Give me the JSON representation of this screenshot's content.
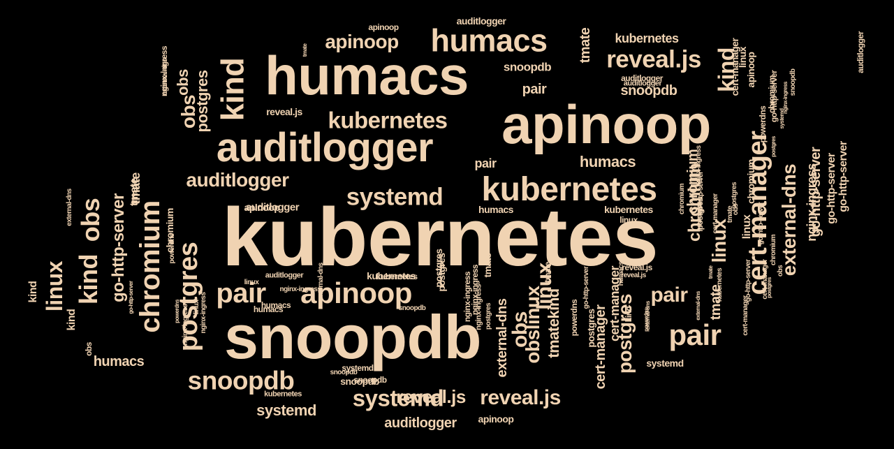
{
  "colors": {
    "background": "#000000",
    "text": "#f0d3b2"
  },
  "words": [
    "kubernetes",
    "snoopdb",
    "apinoop",
    "humacs",
    "auditlogger",
    "kubernetes",
    "humacs",
    "apinoop",
    "kubernetes",
    "systemd",
    "reveal.js",
    "snoopdb",
    "auditlogger",
    "kind",
    "cert-manager",
    "external-dns",
    "pair",
    "pair",
    "pair",
    "apinoop",
    "postgres",
    "chromium",
    "obs",
    "kind",
    "linux",
    "obs",
    "kind",
    "linux",
    "auditlogger",
    "obs",
    "postgres",
    "kind",
    "linux",
    "chromium",
    "reveal.js",
    "humacs",
    "snoopdb",
    "nginx-ingress",
    "go-http-server",
    "systemd",
    "obslinux",
    "postgres",
    "tmate",
    "cert-manager",
    "kubernetes",
    "snoopdb",
    "systemd",
    "reveal.js",
    "pair",
    "humacs",
    "apinoop",
    "kubernetes",
    "auditlogger",
    "reveal.js",
    "pair",
    "snoopdb",
    "snoopdb",
    "kubernetes",
    "obs",
    "go-http-server",
    "tmate",
    "external-dns",
    "tmate",
    "humacs",
    "chromium",
    "tmate",
    "tmatekind",
    "cert-manager",
    "linux",
    "nginx-ingress",
    "chromium",
    "chromium",
    "chromium",
    "obs",
    "postgres",
    "tmate",
    "humacs",
    "postgres",
    "apinoop",
    "go-http-server",
    "auditlogger",
    "auditlogger",
    "kubernetes",
    "humacs",
    "snoopdb",
    "reveal.js",
    "auditlogger",
    "apinoop",
    "linux",
    "kubernetes",
    "linux",
    "nginx-ingress",
    "go-http-server",
    "apinoop",
    "systemd",
    "snoopdb",
    "reveal.js",
    "systemd",
    "postgres",
    "external-dns",
    "tmate",
    "kind",
    "powerdns",
    "nginx-ingress",
    "humacs",
    "go-http-server",
    "postgres",
    "kind",
    "external-dns",
    "external-dns",
    "nginx-ingress",
    "nginx-ingress",
    "powerdns",
    "chromium",
    "cert-manager",
    "go-http-server",
    "tmate",
    "obs",
    "external-dns",
    "powerdns",
    "cert-manager",
    "nginx-ingress",
    "go-http-server",
    "chromium",
    "postgres",
    "auditlogger",
    "powerdns",
    "nginx-ingress",
    "linux",
    "postgres",
    "go-http-server",
    "tmate",
    "obs",
    "kubernetes",
    "cert-manager",
    "auditlogger",
    "nginx-ingress",
    "powerdns",
    "postgres",
    "tmate",
    "powerdns",
    "external-dns",
    "go-http-server",
    "linux",
    "nginx-ingress",
    "cert-manager",
    "postgres",
    "go-http-server",
    "systemd",
    "snoopdb",
    "kind",
    "chromium",
    "obs",
    "nginx-ingress",
    "reveal.js"
  ]
}
